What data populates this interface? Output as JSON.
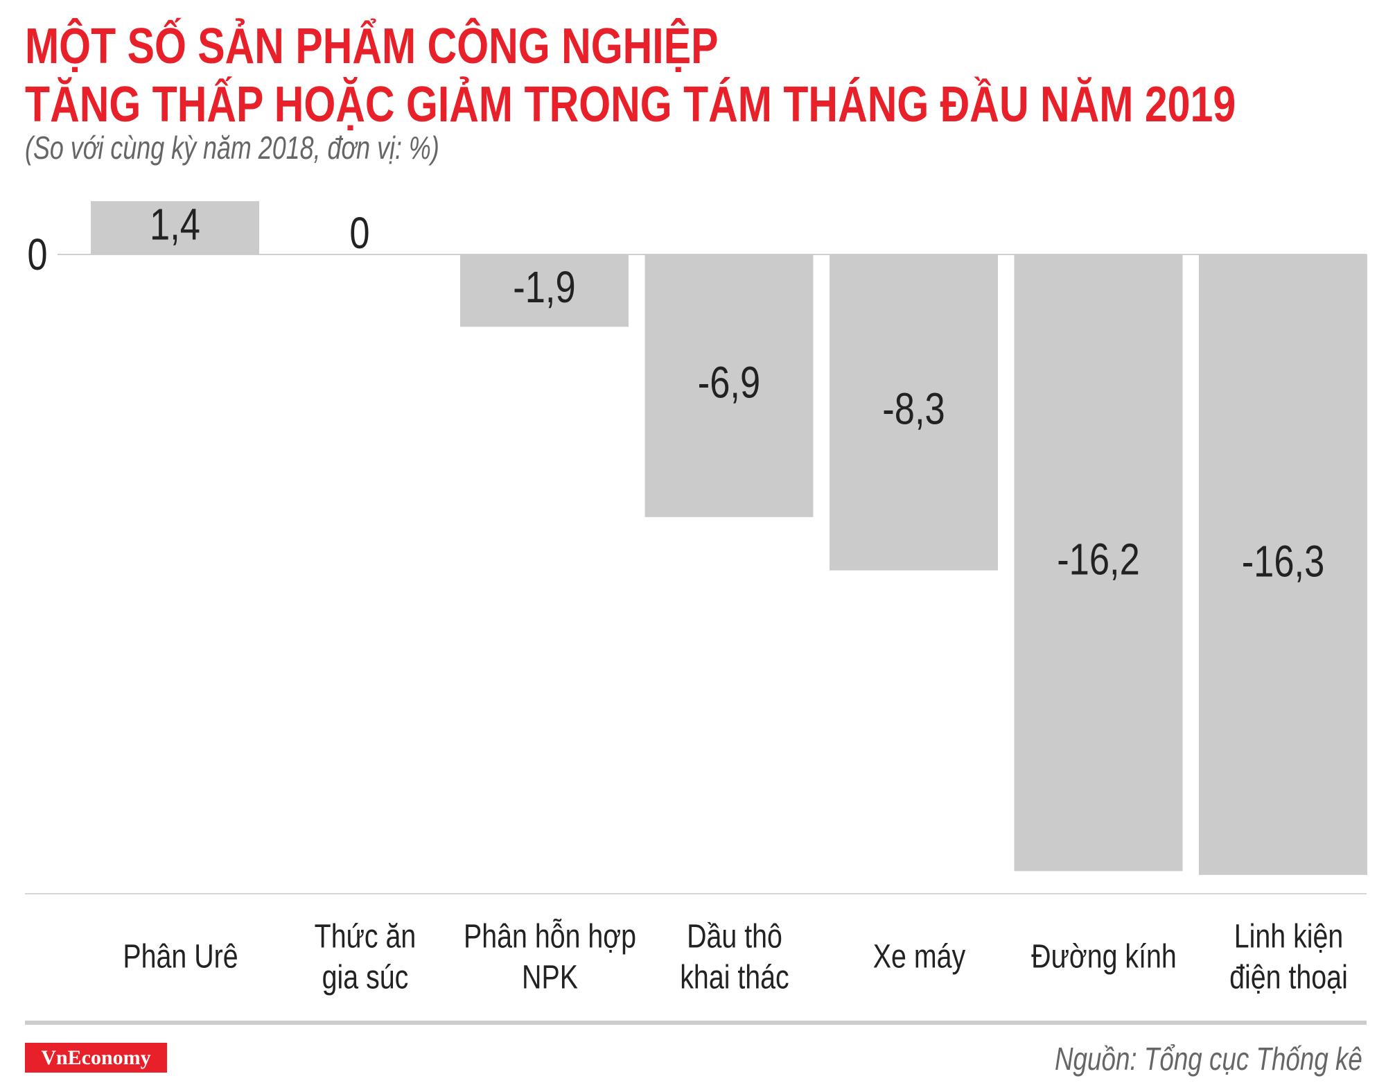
{
  "title_lines": [
    "MỘT SỐ SẢN PHẨM CÔNG NGHIỆP",
    "TĂNG THẤP HOẶC GIẢM TRONG TÁM THÁNG ĐẦU NĂM 2019"
  ],
  "subtitle": "(So với cùng kỳ năm 2018, đơn vị: %)",
  "source": "Nguồn: Tổng cục Thống kê",
  "logo": "VnEconomy",
  "colors": {
    "title": "#e8202a",
    "bar": "#cccbcb",
    "text": "#222222"
  },
  "chart_data": {
    "type": "bar",
    "categories": [
      [
        "Phân Urê"
      ],
      [
        "Thức ăn",
        "gia súc"
      ],
      [
        "Phân hỗn hợp",
        "NPK"
      ],
      [
        "Dầu thô",
        "khai thác"
      ],
      [
        "Xe máy"
      ],
      [
        "Đường kính"
      ],
      [
        "Linh kiện",
        "điện thoại"
      ]
    ],
    "values": [
      1.4,
      0,
      -1.9,
      -6.9,
      -8.3,
      -16.2,
      -16.3
    ],
    "data_labels": [
      "1,4",
      "0",
      "-1,9",
      "-6,9",
      "-8,3",
      "-16,2",
      "-16,3"
    ],
    "y_ticks": [
      "0"
    ],
    "grid": false,
    "legend": "none"
  }
}
